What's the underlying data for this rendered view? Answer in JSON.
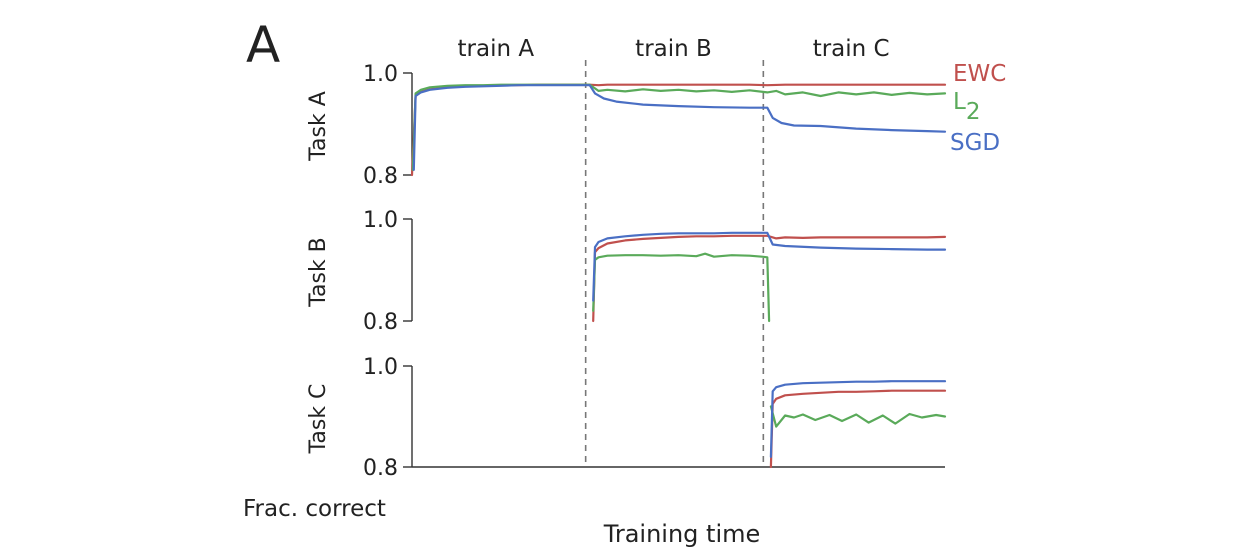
{
  "figure": {
    "panel_letter": "A",
    "xlabel": "Training time",
    "ylabel_common": "Frac. correct"
  },
  "phases": [
    "train A",
    "train B",
    "train C"
  ],
  "legend": [
    {
      "label": "EWC",
      "color": "#c0504d"
    },
    {
      "label": "L",
      "sub": "2",
      "color": "#5aaa5a"
    },
    {
      "label": "SGD",
      "color": "#4a6fc4"
    }
  ],
  "chart_data": {
    "type": "line",
    "title": "",
    "xlabel": "Training time",
    "ylabel": "Frac. correct",
    "xlim": [
      0,
      3
    ],
    "phase_boundaries": [
      1,
      2
    ],
    "grid": false,
    "legend_placement": "right of top panel",
    "panels": [
      {
        "ylabel": "Task A",
        "ylim": [
          0.8,
          1.0
        ],
        "yticks": [
          "0.8",
          "1.0"
        ],
        "series": [
          {
            "name": "EWC",
            "color": "#c0504d",
            "x": [
              0,
              0.02,
              0.05,
              0.1,
              0.2,
              0.3,
              0.4,
              0.5,
              0.6,
              0.7,
              0.8,
              0.9,
              1.0,
              1.05,
              1.1,
              1.3,
              1.5,
              1.7,
              1.9,
              2.0,
              2.1,
              2.3,
              2.5,
              2.7,
              2.9,
              3.0
            ],
            "y": [
              0.8,
              0.955,
              0.963,
              0.968,
              0.972,
              0.974,
              0.975,
              0.976,
              0.976,
              0.977,
              0.977,
              0.977,
              0.977,
              0.976,
              0.977,
              0.977,
              0.977,
              0.977,
              0.977,
              0.976,
              0.977,
              0.977,
              0.977,
              0.977,
              0.977,
              0.977
            ]
          },
          {
            "name": "L2",
            "color": "#5aaa5a",
            "x": [
              0.005,
              0.02,
              0.05,
              0.1,
              0.2,
              0.3,
              0.4,
              0.5,
              0.6,
              0.7,
              0.8,
              0.9,
              1.0,
              1.05,
              1.1,
              1.2,
              1.3,
              1.4,
              1.5,
              1.6,
              1.7,
              1.8,
              1.9,
              2.0,
              2.05,
              2.1,
              2.2,
              2.3,
              2.4,
              2.5,
              2.6,
              2.7,
              2.8,
              2.9,
              3.0
            ],
            "y": [
              0.81,
              0.96,
              0.967,
              0.972,
              0.975,
              0.976,
              0.976,
              0.977,
              0.977,
              0.977,
              0.977,
              0.977,
              0.977,
              0.965,
              0.967,
              0.964,
              0.968,
              0.965,
              0.967,
              0.964,
              0.966,
              0.963,
              0.966,
              0.962,
              0.965,
              0.958,
              0.962,
              0.955,
              0.962,
              0.958,
              0.962,
              0.957,
              0.961,
              0.958,
              0.96
            ]
          },
          {
            "name": "SGD",
            "color": "#4a6fc4",
            "x": [
              0.01,
              0.02,
              0.05,
              0.1,
              0.2,
              0.3,
              0.4,
              0.5,
              0.6,
              0.7,
              0.8,
              0.9,
              1.0,
              1.03,
              1.08,
              1.15,
              1.3,
              1.5,
              1.7,
              1.9,
              2.0,
              2.03,
              2.08,
              2.15,
              2.3,
              2.5,
              2.7,
              2.9,
              3.0
            ],
            "y": [
              0.81,
              0.955,
              0.962,
              0.967,
              0.971,
              0.973,
              0.974,
              0.975,
              0.976,
              0.976,
              0.976,
              0.976,
              0.976,
              0.96,
              0.95,
              0.944,
              0.938,
              0.935,
              0.933,
              0.932,
              0.932,
              0.912,
              0.902,
              0.897,
              0.896,
              0.891,
              0.888,
              0.886,
              0.885
            ]
          }
        ]
      },
      {
        "ylabel": "Task B",
        "ylim": [
          0.8,
          1.0
        ],
        "yticks": [
          "0.8",
          "1.0"
        ],
        "series": [
          {
            "name": "EWC",
            "color": "#c0504d",
            "x": [
              1.02,
              1.03,
              1.05,
              1.1,
              1.2,
              1.3,
              1.4,
              1.5,
              1.6,
              1.7,
              1.8,
              1.9,
              2.0,
              2.05,
              2.1,
              2.2,
              2.3,
              2.4,
              2.5,
              2.6,
              2.7,
              2.8,
              2.9,
              3.0
            ],
            "y": [
              0.8,
              0.935,
              0.943,
              0.952,
              0.958,
              0.961,
              0.963,
              0.965,
              0.966,
              0.966,
              0.967,
              0.967,
              0.967,
              0.962,
              0.964,
              0.963,
              0.964,
              0.964,
              0.964,
              0.964,
              0.964,
              0.964,
              0.964,
              0.965
            ]
          },
          {
            "name": "L2",
            "color": "#5aaa5a",
            "x": [
              1.02,
              1.03,
              1.05,
              1.1,
              1.2,
              1.3,
              1.4,
              1.5,
              1.6,
              1.65,
              1.7,
              1.8,
              1.9,
              1.97,
              2.0,
              2.01
            ],
            "y": [
              0.82,
              0.92,
              0.925,
              0.928,
              0.929,
              0.929,
              0.928,
              0.929,
              0.927,
              0.932,
              0.926,
              0.929,
              0.928,
              0.926,
              0.925,
              0.8
            ]
          },
          {
            "name": "SGD",
            "color": "#4a6fc4",
            "x": [
              1.02,
              1.03,
              1.05,
              1.1,
              1.2,
              1.3,
              1.4,
              1.5,
              1.6,
              1.7,
              1.8,
              1.9,
              2.0,
              2.03,
              2.1,
              2.3,
              2.5,
              2.7,
              2.9,
              3.0
            ],
            "y": [
              0.84,
              0.945,
              0.955,
              0.962,
              0.966,
              0.969,
              0.971,
              0.972,
              0.972,
              0.972,
              0.973,
              0.973,
              0.973,
              0.95,
              0.947,
              0.944,
              0.942,
              0.941,
              0.94,
              0.94
            ]
          }
        ]
      },
      {
        "ylabel": "Task C",
        "ylim": [
          0.8,
          1.0
        ],
        "yticks": [
          "0.8",
          "1.0"
        ],
        "series": [
          {
            "name": "EWC",
            "color": "#c0504d",
            "x": [
              2.02,
              2.03,
              2.05,
              2.1,
              2.2,
              2.3,
              2.4,
              2.5,
              2.6,
              2.7,
              2.8,
              2.9,
              3.0
            ],
            "y": [
              0.8,
              0.925,
              0.935,
              0.942,
              0.945,
              0.947,
              0.949,
              0.949,
              0.95,
              0.951,
              0.951,
              0.951,
              0.951
            ]
          },
          {
            "name": "L2",
            "color": "#5aaa5a",
            "x": [
              2.02,
              2.05,
              2.1,
              2.15,
              2.2,
              2.27,
              2.35,
              2.42,
              2.5,
              2.57,
              2.65,
              2.72,
              2.8,
              2.87,
              2.95,
              3.0
            ],
            "y": [
              0.92,
              0.88,
              0.902,
              0.898,
              0.904,
              0.893,
              0.903,
              0.891,
              0.904,
              0.888,
              0.902,
              0.886,
              0.905,
              0.898,
              0.903,
              0.9
            ]
          },
          {
            "name": "SGD",
            "color": "#4a6fc4",
            "x": [
              2.02,
              2.03,
              2.05,
              2.1,
              2.2,
              2.3,
              2.4,
              2.5,
              2.6,
              2.7,
              2.8,
              2.9,
              3.0
            ],
            "y": [
              0.82,
              0.95,
              0.958,
              0.963,
              0.966,
              0.967,
              0.968,
              0.969,
              0.969,
              0.97,
              0.97,
              0.97,
              0.97
            ]
          }
        ]
      }
    ]
  }
}
